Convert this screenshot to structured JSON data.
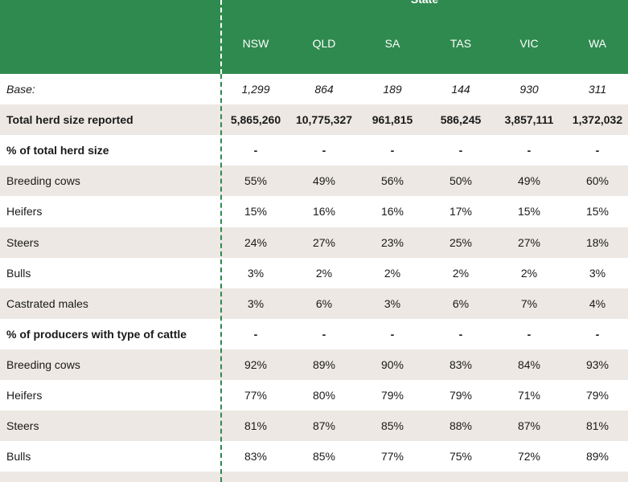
{
  "header": {
    "group": "State",
    "columns": [
      "NSW",
      "QLD",
      "SA",
      "TAS",
      "VIC",
      "WA"
    ]
  },
  "table": {
    "rows": [
      {
        "label": "Base:",
        "style": "italic",
        "cells": [
          "1,299",
          "864",
          "189",
          "144",
          "930",
          "311"
        ]
      },
      {
        "label": "Total herd size reported",
        "style": "bold",
        "cells": [
          "5,865,260",
          "10,775,327",
          "961,815",
          "586,245",
          "3,857,111",
          "1,372,032"
        ]
      },
      {
        "label": "% of total herd size",
        "style": "bold",
        "cells": [
          "-",
          "-",
          "-",
          "-",
          "-",
          "-"
        ]
      },
      {
        "label": "Breeding cows",
        "style": "normal",
        "cells": [
          "55%",
          "49%",
          "56%",
          "50%",
          "49%",
          "60%"
        ]
      },
      {
        "label": "Heifers",
        "style": "normal",
        "cells": [
          "15%",
          "16%",
          "16%",
          "17%",
          "15%",
          "15%"
        ]
      },
      {
        "label": "Steers",
        "style": "normal",
        "cells": [
          "24%",
          "27%",
          "23%",
          "25%",
          "27%",
          "18%"
        ]
      },
      {
        "label": "Bulls",
        "style": "normal",
        "cells": [
          "3%",
          "2%",
          "2%",
          "2%",
          "2%",
          "3%"
        ]
      },
      {
        "label": "Castrated males",
        "style": "normal",
        "cells": [
          "3%",
          "6%",
          "3%",
          "6%",
          "7%",
          "4%"
        ]
      },
      {
        "label": "% of producers with type of cattle",
        "style": "bold",
        "cells": [
          "-",
          "-",
          "-",
          "-",
          "-",
          "-"
        ]
      },
      {
        "label": "Breeding cows",
        "style": "normal",
        "cells": [
          "92%",
          "89%",
          "90%",
          "83%",
          "84%",
          "93%"
        ]
      },
      {
        "label": "Heifers",
        "style": "normal",
        "cells": [
          "77%",
          "80%",
          "79%",
          "79%",
          "71%",
          "79%"
        ]
      },
      {
        "label": "Steers",
        "style": "normal",
        "cells": [
          "81%",
          "87%",
          "85%",
          "88%",
          "87%",
          "81%"
        ]
      },
      {
        "label": "Bulls",
        "style": "normal",
        "cells": [
          "83%",
          "85%",
          "77%",
          "75%",
          "72%",
          "89%"
        ]
      }
    ]
  }
}
